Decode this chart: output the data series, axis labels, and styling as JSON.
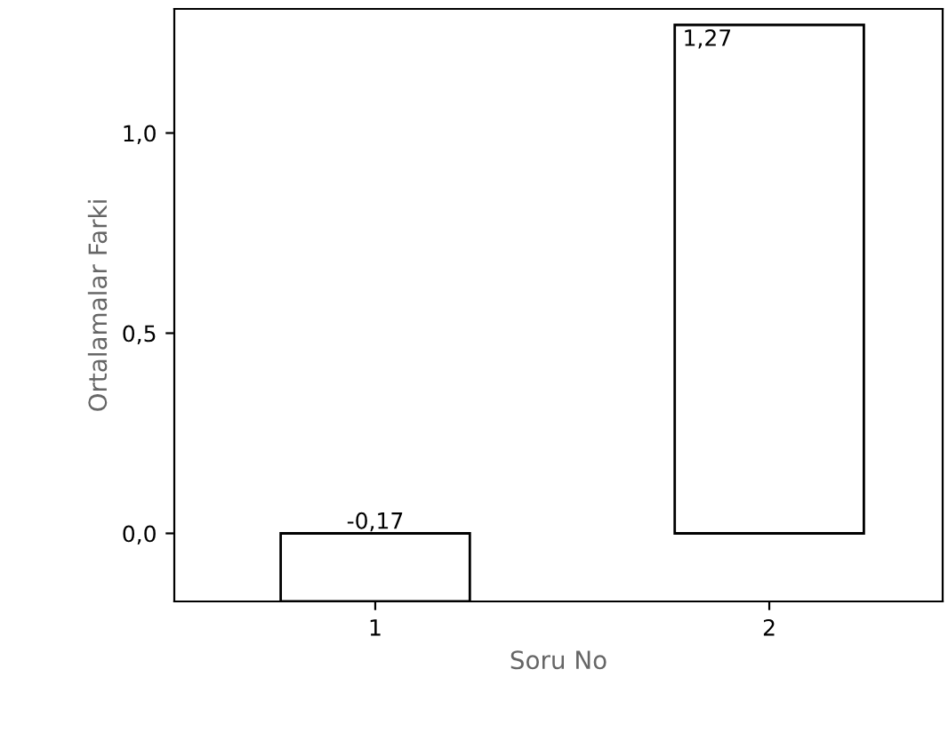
{
  "chart_data": {
    "type": "bar",
    "xlabel": "Soru No",
    "ylabel": "Ortalamalar Farki",
    "categories": [
      "1",
      "2"
    ],
    "values": [
      -0.17,
      1.27
    ],
    "value_labels": [
      "-0,17",
      "1,27"
    ],
    "color": "#ffffff",
    "ylim": [
      -0.17,
      1.31
    ],
    "yticks": [
      {
        "value": 0,
        "label": "0,0"
      },
      {
        "value": 0.5,
        "label": "0,5"
      },
      {
        "value": 1.0,
        "label": "1,0"
      }
    ],
    "grid": false
  }
}
